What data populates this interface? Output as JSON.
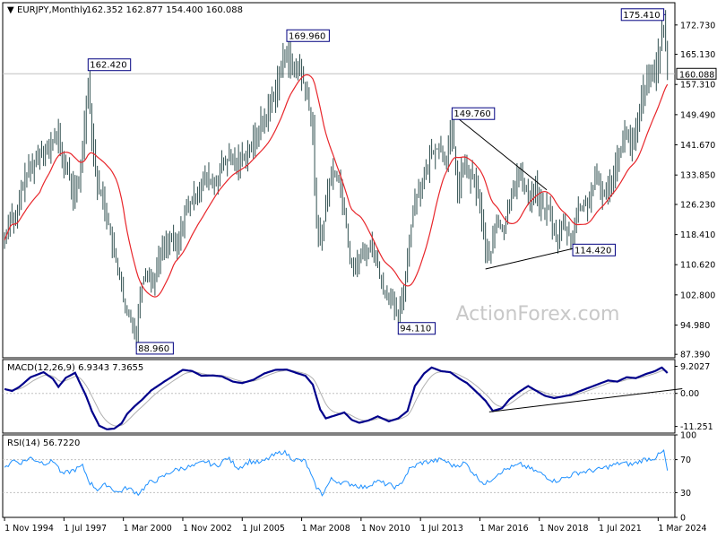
{
  "header": {
    "symbol": "EURJPY,Monthly",
    "ohlc": "162.352 162.877 154.400 160.088"
  },
  "watermark": "ActionForex.com",
  "colors": {
    "candle": "#2f4f4f",
    "ma": "#e8262b",
    "box_border": "#000080",
    "macd_main": "#00008b",
    "macd_signal": "#b0b0b0",
    "rsi": "#1e90ff",
    "trendline": "#000000",
    "grid_ref": "#c0c0c0"
  },
  "chart_data": [
    {
      "type": "candlestick",
      "panel": "price",
      "ylim": [
        86.5,
        178.5
      ],
      "y_ticks": [
        "172.730",
        "165.130",
        "157.310",
        "149.490",
        "141.670",
        "133.850",
        "126.230",
        "118.410",
        "110.620",
        "102.800",
        "94.980",
        "87.390"
      ],
      "last_price": "160.088",
      "x_range": [
        "1994-11",
        "2024-08"
      ],
      "x_ticks": [
        "1 Nov 1994",
        "1 Jul 1997",
        "1 Mar 2000",
        "1 Nov 2002",
        "1 Jul 2005",
        "1 Mar 2008",
        "1 Nov 2010",
        "1 Jul 2013",
        "1 Mar 2016",
        "1 Nov 2018",
        "1 Jul 2021",
        "1 Mar 2024"
      ],
      "close_path": [
        [
          "1994-11",
          117
        ],
        [
          "1995-02",
          124
        ],
        [
          "1995-05",
          121
        ],
        [
          "1995-08",
          130
        ],
        [
          "1995-11",
          134
        ],
        [
          "1996-03",
          137
        ],
        [
          "1996-07",
          141
        ],
        [
          "1996-11",
          140
        ],
        [
          "1997-03",
          145
        ],
        [
          "1997-06",
          138
        ],
        [
          "1997-09",
          135
        ],
        [
          "1997-12",
          129
        ],
        [
          "1998-03",
          131
        ],
        [
          "1998-06",
          147
        ],
        [
          "1998-08",
          159
        ],
        [
          "1998-10",
          145
        ],
        [
          "1999-01",
          131
        ],
        [
          "1999-04",
          128
        ],
        [
          "1999-07",
          121
        ],
        [
          "1999-10",
          113
        ],
        [
          "2000-01",
          108
        ],
        [
          "2000-04",
          98
        ],
        [
          "2000-07",
          97
        ],
        [
          "2000-10",
          92
        ],
        [
          "2000-12",
          104
        ],
        [
          "2001-03",
          109
        ],
        [
          "2001-07",
          106
        ],
        [
          "2001-10",
          112
        ],
        [
          "2002-01",
          116
        ],
        [
          "2002-05",
          117
        ],
        [
          "2002-08",
          115
        ],
        [
          "2002-12",
          124
        ],
        [
          "2003-04",
          127
        ],
        [
          "2003-08",
          131
        ],
        [
          "2003-12",
          133
        ],
        [
          "2004-04",
          131
        ],
        [
          "2004-08",
          136
        ],
        [
          "2004-12",
          138
        ],
        [
          "2005-04",
          137
        ],
        [
          "2005-08",
          139
        ],
        [
          "2005-12",
          141
        ],
        [
          "2006-04",
          146
        ],
        [
          "2006-08",
          149
        ],
        [
          "2006-12",
          155
        ],
        [
          "2007-04",
          161
        ],
        [
          "2007-07",
          167
        ],
        [
          "2007-10",
          160
        ],
        [
          "2008-01",
          162
        ],
        [
          "2008-04",
          158
        ],
        [
          "2008-07",
          151
        ],
        [
          "2008-09",
          145
        ],
        [
          "2008-11",
          120
        ],
        [
          "2009-02",
          118
        ],
        [
          "2009-05",
          130
        ],
        [
          "2009-08",
          135
        ],
        [
          "2009-11",
          133
        ],
        [
          "2010-02",
          125
        ],
        [
          "2010-05",
          112
        ],
        [
          "2010-08",
          110
        ],
        [
          "2010-11",
          113
        ],
        [
          "2011-02",
          114
        ],
        [
          "2011-05",
          116
        ],
        [
          "2011-08",
          110
        ],
        [
          "2011-11",
          104
        ],
        [
          "2012-02",
          103
        ],
        [
          "2012-05",
          99
        ],
        [
          "2012-07",
          97
        ],
        [
          "2012-10",
          104
        ],
        [
          "2013-01",
          117
        ],
        [
          "2013-04",
          128
        ],
        [
          "2013-07",
          131
        ],
        [
          "2013-10",
          134
        ],
        [
          "2014-01",
          140
        ],
        [
          "2014-05",
          141
        ],
        [
          "2014-09",
          138
        ],
        [
          "2014-12",
          146
        ],
        [
          "2015-03",
          130
        ],
        [
          "2015-06",
          136
        ],
        [
          "2015-09",
          134
        ],
        [
          "2015-12",
          132
        ],
        [
          "2016-03",
          127
        ],
        [
          "2016-06",
          114
        ],
        [
          "2016-09",
          114
        ],
        [
          "2016-12",
          122
        ],
        [
          "2017-04",
          119
        ],
        [
          "2017-08",
          130
        ],
        [
          "2017-12",
          134
        ],
        [
          "2018-03",
          131
        ],
        [
          "2018-06",
          128
        ],
        [
          "2018-09",
          131
        ],
        [
          "2018-12",
          125
        ],
        [
          "2019-04",
          125
        ],
        [
          "2019-08",
          117
        ],
        [
          "2019-12",
          121
        ],
        [
          "2020-04",
          117
        ],
        [
          "2020-08",
          125
        ],
        [
          "2020-12",
          126
        ],
        [
          "2021-03",
          129
        ],
        [
          "2021-06",
          133
        ],
        [
          "2021-09",
          129
        ],
        [
          "2021-12",
          130
        ],
        [
          "2022-03",
          135
        ],
        [
          "2022-06",
          140
        ],
        [
          "2022-10",
          145
        ],
        [
          "2023-01",
          141
        ],
        [
          "2023-04",
          146
        ],
        [
          "2023-07",
          156
        ],
        [
          "2023-10",
          158
        ],
        [
          "2024-01",
          161
        ],
        [
          "2024-04",
          167
        ],
        [
          "2024-06",
          172
        ],
        [
          "2024-07",
          166
        ],
        [
          "2024-08",
          160.088
        ]
      ],
      "annotations": [
        {
          "label": "162.420",
          "date": "1998-08",
          "value": 162.42,
          "anchor": "high"
        },
        {
          "label": "88.960",
          "date": "2000-10",
          "value": 88.96,
          "anchor": "low"
        },
        {
          "label": "169.960",
          "date": "2007-07",
          "value": 169.96,
          "anchor": "high"
        },
        {
          "label": "94.110",
          "date": "2012-07",
          "value": 94.11,
          "anchor": "low"
        },
        {
          "label": "149.760",
          "date": "2014-12",
          "value": 149.76,
          "anchor": "high"
        },
        {
          "label": "114.420",
          "date": "2020-05",
          "value": 114.42,
          "anchor": "low"
        },
        {
          "label": "175.410",
          "date": "2024-07",
          "value": 175.41,
          "anchor": "high"
        }
      ],
      "trendlines": [
        {
          "from": [
            "2014-12",
            149.76
          ],
          "to": [
            "2019-03",
            130.0
          ]
        },
        {
          "from": [
            "2016-06",
            109.5
          ],
          "to": [
            "2021-02",
            115.8
          ]
        }
      ]
    },
    {
      "type": "line",
      "panel": "macd",
      "label": "MACD(12,26,9) 6.9343 7.3655",
      "ylim": [
        -13.5,
        11.5
      ],
      "y_ticks": [
        "9.2027",
        "0.00",
        "-11.251"
      ],
      "main": [
        [
          "1994-11",
          1.5
        ],
        [
          "1995-03",
          0.8
        ],
        [
          "1995-07",
          2.2
        ],
        [
          "1996-01",
          5.5
        ],
        [
          "1996-08",
          7.2
        ],
        [
          "1997-01",
          5.0
        ],
        [
          "1997-04",
          2.2
        ],
        [
          "1997-08",
          5.3
        ],
        [
          "1998-01",
          7.0
        ],
        [
          "1998-04",
          3.0
        ],
        [
          "1998-07",
          -1.0
        ],
        [
          "1998-10",
          -6.0
        ],
        [
          "1999-02",
          -11.0
        ],
        [
          "1999-06",
          -12.2
        ],
        [
          "1999-10",
          -12.0
        ],
        [
          "2000-02",
          -10.2
        ],
        [
          "2000-05",
          -7.0
        ],
        [
          "2000-09",
          -4.4
        ],
        [
          "2001-01",
          -2.2
        ],
        [
          "2001-06",
          1.0
        ],
        [
          "2002-01",
          4.0
        ],
        [
          "2002-06",
          6.0
        ],
        [
          "2002-11",
          8.0
        ],
        [
          "2003-04",
          7.6
        ],
        [
          "2003-09",
          6.0
        ],
        [
          "2004-03",
          6.1
        ],
        [
          "2004-08",
          5.8
        ],
        [
          "2005-02",
          4.0
        ],
        [
          "2005-07",
          3.5
        ],
        [
          "2006-01",
          4.6
        ],
        [
          "2006-07",
          6.8
        ],
        [
          "2007-01",
          8.0
        ],
        [
          "2007-07",
          8.1
        ],
        [
          "2007-12",
          7.0
        ],
        [
          "2008-05",
          6.0
        ],
        [
          "2008-09",
          3.0
        ],
        [
          "2009-01",
          -5.5
        ],
        [
          "2009-04",
          -8.5
        ],
        [
          "2009-09",
          -7.5
        ],
        [
          "2010-02",
          -6.5
        ],
        [
          "2010-06",
          -9.0
        ],
        [
          "2010-10",
          -10.0
        ],
        [
          "2011-03",
          -9.2
        ],
        [
          "2011-08",
          -7.8
        ],
        [
          "2012-02",
          -9.5
        ],
        [
          "2012-07",
          -8.5
        ],
        [
          "2012-12",
          -6.0
        ],
        [
          "2013-04",
          2.5
        ],
        [
          "2013-09",
          6.8
        ],
        [
          "2014-01",
          8.8
        ],
        [
          "2014-06",
          7.6
        ],
        [
          "2014-11",
          7.2
        ],
        [
          "2015-04",
          5.0
        ],
        [
          "2015-08",
          3.5
        ],
        [
          "2016-01",
          0.6
        ],
        [
          "2016-06",
          -2.5
        ],
        [
          "2016-10",
          -6.0
        ],
        [
          "2017-03",
          -5.0
        ],
        [
          "2017-07",
          -2.0
        ],
        [
          "2017-12",
          0.5
        ],
        [
          "2018-05",
          2.5
        ],
        [
          "2018-09",
          1.0
        ],
        [
          "2019-02",
          -0.8
        ],
        [
          "2019-07",
          -1.6
        ],
        [
          "2019-12",
          -1.0
        ],
        [
          "2020-04",
          -0.5
        ],
        [
          "2020-09",
          0.8
        ],
        [
          "2021-02",
          2.0
        ],
        [
          "2021-07",
          3.2
        ],
        [
          "2021-12",
          4.4
        ],
        [
          "2022-05",
          4.0
        ],
        [
          "2022-10",
          5.5
        ],
        [
          "2023-03",
          5.2
        ],
        [
          "2023-08",
          6.5
        ],
        [
          "2024-01",
          7.5
        ],
        [
          "2024-05",
          8.8
        ],
        [
          "2024-08",
          6.9343
        ]
      ],
      "signal_last": 7.3655,
      "trendline": {
        "from": [
          "2016-08",
          -6.3
        ],
        "to": [
          "2025-04",
          1.6
        ]
      }
    },
    {
      "type": "line",
      "panel": "rsi",
      "label": "RSI(14) 56.7220",
      "ylim": [
        0,
        100
      ],
      "y_ticks": [
        "100",
        "70",
        "30",
        "0"
      ],
      "levels": [
        70,
        30
      ],
      "values": [
        [
          "1994-11",
          58
        ],
        [
          "1995-03",
          70
        ],
        [
          "1995-07",
          66
        ],
        [
          "1996-01",
          72
        ],
        [
          "1996-08",
          66
        ],
        [
          "1997-02",
          68
        ],
        [
          "1997-06",
          52
        ],
        [
          "1998-01",
          58
        ],
        [
          "1998-05",
          62
        ],
        [
          "1998-09",
          42
        ],
        [
          "1999-01",
          34
        ],
        [
          "1999-06",
          40
        ],
        [
          "1999-12",
          30
        ],
        [
          "2000-05",
          36
        ],
        [
          "2000-11",
          29
        ],
        [
          "2001-05",
          42
        ],
        [
          "2001-11",
          47
        ],
        [
          "2002-05",
          56
        ],
        [
          "2002-11",
          60
        ],
        [
          "2003-05",
          62
        ],
        [
          "2003-11",
          68
        ],
        [
          "2004-05",
          62
        ],
        [
          "2004-11",
          72
        ],
        [
          "2005-05",
          60
        ],
        [
          "2005-11",
          68
        ],
        [
          "2006-05",
          66
        ],
        [
          "2006-11",
          74
        ],
        [
          "2007-05",
          80
        ],
        [
          "2007-11",
          70
        ],
        [
          "2008-05",
          68
        ],
        [
          "2008-10",
          40
        ],
        [
          "2009-02",
          28
        ],
        [
          "2009-07",
          46
        ],
        [
          "2010-01",
          42
        ],
        [
          "2010-07",
          40
        ],
        [
          "2011-01",
          36
        ],
        [
          "2011-07",
          44
        ],
        [
          "2012-01",
          40
        ],
        [
          "2012-07",
          36
        ],
        [
          "2013-01",
          58
        ],
        [
          "2013-07",
          66
        ],
        [
          "2014-01",
          68
        ],
        [
          "2014-07",
          70
        ],
        [
          "2015-01",
          62
        ],
        [
          "2015-07",
          66
        ],
        [
          "2016-01",
          50
        ],
        [
          "2016-06",
          40
        ],
        [
          "2017-01",
          54
        ],
        [
          "2017-07",
          60
        ],
        [
          "2018-01",
          64
        ],
        [
          "2018-07",
          58
        ],
        [
          "2019-01",
          52
        ],
        [
          "2019-07",
          44
        ],
        [
          "2020-01",
          48
        ],
        [
          "2020-07",
          54
        ],
        [
          "2021-01",
          56
        ],
        [
          "2021-07",
          58
        ],
        [
          "2022-01",
          62
        ],
        [
          "2022-07",
          66
        ],
        [
          "2023-01",
          64
        ],
        [
          "2023-07",
          70
        ],
        [
          "2024-01",
          72
        ],
        [
          "2024-06",
          80
        ],
        [
          "2024-08",
          56.722
        ]
      ]
    }
  ]
}
